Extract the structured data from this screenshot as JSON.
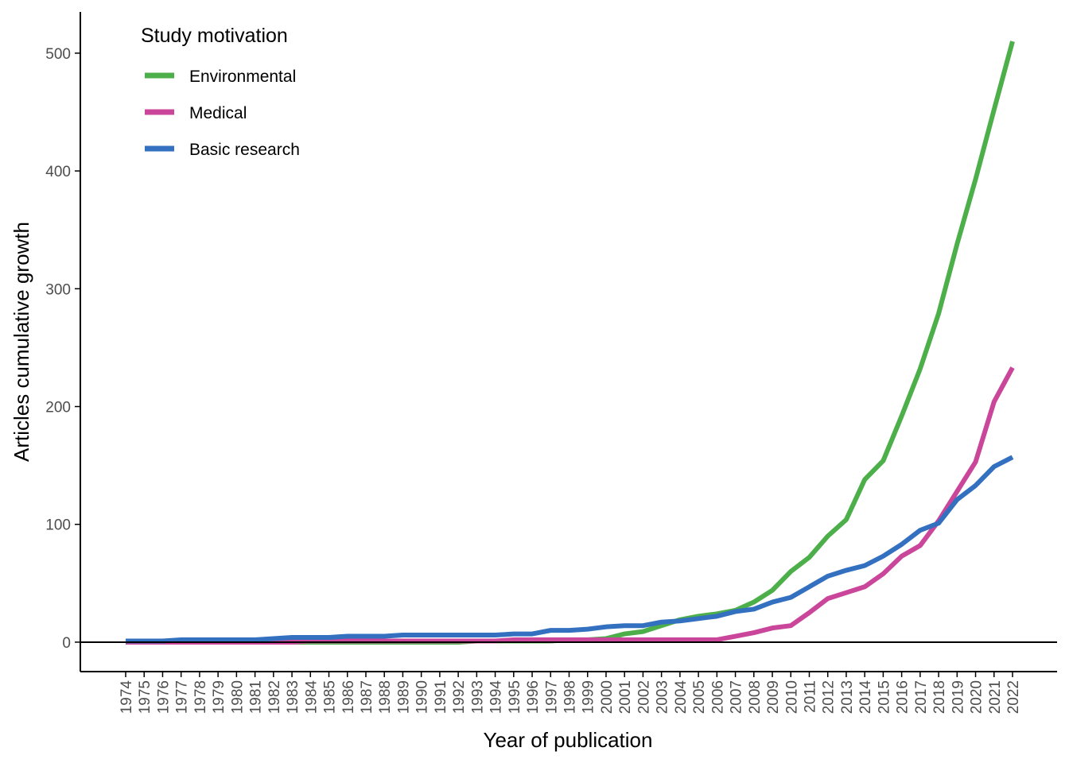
{
  "colors": {
    "Environmental": "#4daf4a",
    "Medical": "#c9469a",
    "Basic research": "#3370c0",
    "axis": "#000000"
  },
  "chart_data": {
    "type": "line",
    "title": "",
    "xlabel": "Year of publication",
    "ylabel": "Articles cumulative growth",
    "ylim": [
      -25,
      535
    ],
    "yticks": [
      0,
      100,
      200,
      300,
      400,
      500
    ],
    "legend": {
      "title": "Study motivation",
      "placement": "top-left"
    },
    "grid": false,
    "categories": [
      "1974",
      "1975",
      "1976",
      "1977",
      "1978",
      "1979",
      "1980",
      "1981",
      "1982",
      "1983",
      "1984",
      "1985",
      "1986",
      "1987",
      "1988",
      "1989",
      "1990",
      "1991",
      "1992",
      "1993",
      "1994",
      "1995",
      "1996",
      "1997",
      "1998",
      "1999",
      "2000",
      "2001",
      "2002",
      "2003",
      "2004",
      "2005",
      "2006",
      "2007",
      "2008",
      "2009",
      "2010",
      "2011",
      "2012",
      "2013",
      "2014",
      "2015",
      "2016",
      "2017",
      "2018",
      "2019",
      "2020",
      "2021",
      "2022"
    ],
    "series": [
      {
        "name": "Environmental",
        "values": [
          0,
          0,
          0,
          0,
          0,
          0,
          0,
          0,
          0,
          0,
          0,
          0,
          0,
          0,
          0,
          0,
          0,
          0,
          0,
          1,
          1,
          1,
          1,
          1,
          2,
          2,
          3,
          7,
          9,
          14,
          19,
          22,
          24,
          27,
          34,
          44,
          60,
          72,
          90,
          104,
          138,
          154,
          192,
          232,
          279,
          338,
          393,
          452,
          510
        ]
      },
      {
        "name": "Medical",
        "values": [
          0,
          0,
          0,
          0,
          0,
          0,
          0,
          0,
          0,
          0,
          1,
          1,
          1,
          1,
          1,
          1,
          1,
          1,
          1,
          1,
          1,
          2,
          2,
          2,
          2,
          2,
          2,
          2,
          2,
          2,
          2,
          2,
          2,
          5,
          8,
          12,
          14,
          25,
          37,
          42,
          47,
          58,
          73,
          82,
          103,
          128,
          153,
          204,
          233
        ]
      },
      {
        "name": "Basic research",
        "values": [
          1,
          1,
          1,
          2,
          2,
          2,
          2,
          2,
          3,
          4,
          4,
          4,
          5,
          5,
          5,
          6,
          6,
          6,
          6,
          6,
          6,
          7,
          7,
          10,
          10,
          11,
          13,
          14,
          14,
          17,
          18,
          20,
          22,
          26,
          28,
          34,
          38,
          47,
          56,
          61,
          65,
          73,
          83,
          95,
          101,
          121,
          133,
          149,
          157
        ]
      }
    ]
  }
}
